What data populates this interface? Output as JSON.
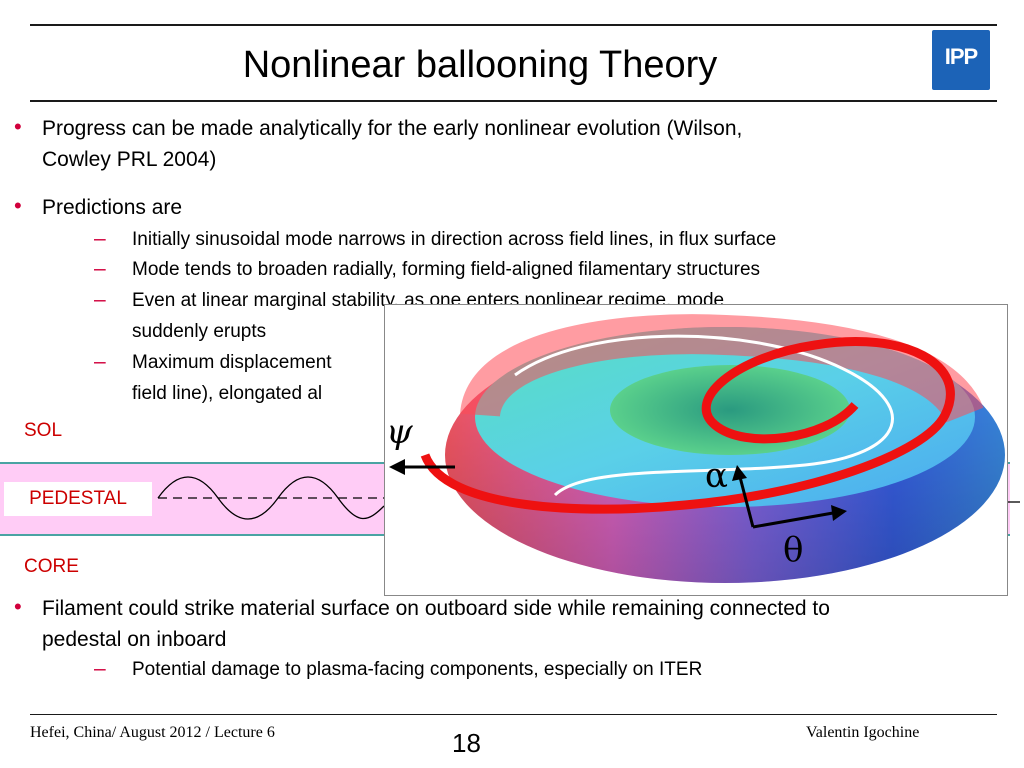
{
  "slide": {
    "title": "Nonlinear ballooning Theory",
    "logo_text": "IPP",
    "bullets": [
      {
        "text_line1": "Progress can be made analytically for the early nonlinear evolution (Wilson,",
        "text_line2": "Cowley PRL 2004)"
      },
      {
        "text": "Predictions are"
      },
      {
        "text_line1": "Filament could strike material surface on outboard side while remaining connected to",
        "text_line2": "pedestal on inboard"
      }
    ],
    "sub_bullets": [
      {
        "text": "Initially sinusoidal mode narrows in direction across field lines, in flux surface"
      },
      {
        "text": "Mode tends to broaden radially, forming field-aligned filamentary structures"
      },
      {
        "text_line1": "Even at linear marginal stability, as one enters nonlinear regime, mode",
        "text_line2": "suddenly erupts"
      },
      {
        "text_line1": "Maximum displacement",
        "text_line2": "field line), elongated al"
      },
      {
        "text": "Potential damage to plasma-facing components, especially on ITER"
      }
    ]
  },
  "diagram": {
    "sol_label": "SOL",
    "pedestal_label": "PEDESTAL",
    "core_label": "CORE",
    "psi_symbol": "ψ",
    "alpha_symbol": "α",
    "theta_symbol": "θ",
    "colors": {
      "pedestal_band": "#ffccf6",
      "band_border": "#4aa3a3",
      "label_red": "#cc0000",
      "bullet_red": "#d1003c",
      "filament_red": "#ee1111"
    }
  },
  "footer": {
    "left": "Hefei, China/ August 2012 / Lecture 6",
    "page": "18",
    "right": "Valentin Igochine"
  }
}
